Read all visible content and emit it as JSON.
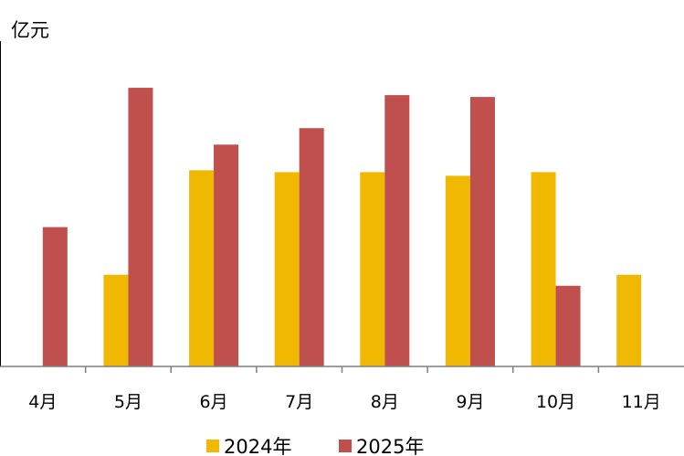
{
  "chart_data": {
    "type": "bar",
    "unit_label": "亿元",
    "categories": [
      "4月",
      "5月",
      "6月",
      "7月",
      "8月",
      "9月",
      "10月",
      "11月"
    ],
    "series": [
      {
        "name": "2024年",
        "color": "#F0B800",
        "values": [
          null,
          100,
          214,
          212,
          212,
          208,
          212,
          100
        ]
      },
      {
        "name": "2025年",
        "color": "#C0504D",
        "values": [
          152,
          304,
          242,
          260,
          296,
          294,
          88,
          null
        ]
      }
    ],
    "ylim": [
      0,
      330
    ],
    "grid": false,
    "legend_position": "bottom"
  }
}
